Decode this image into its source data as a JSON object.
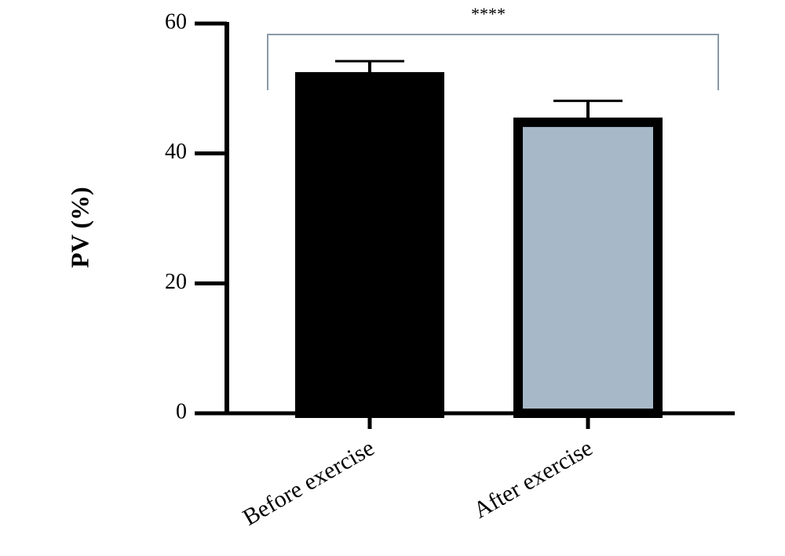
{
  "chart_data": {
    "type": "bar",
    "y_label": "PV (%)",
    "annotation": "****",
    "categories": [
      "Before exercise",
      "After exercise"
    ],
    "values": [
      51.8,
      44.8
    ],
    "errors": [
      2.4,
      3.3
    ],
    "colors": [
      "#000000",
      "#a7b8c8"
    ],
    "ylim": [
      0,
      60
    ],
    "yticks": [
      0,
      20,
      40,
      60
    ]
  }
}
